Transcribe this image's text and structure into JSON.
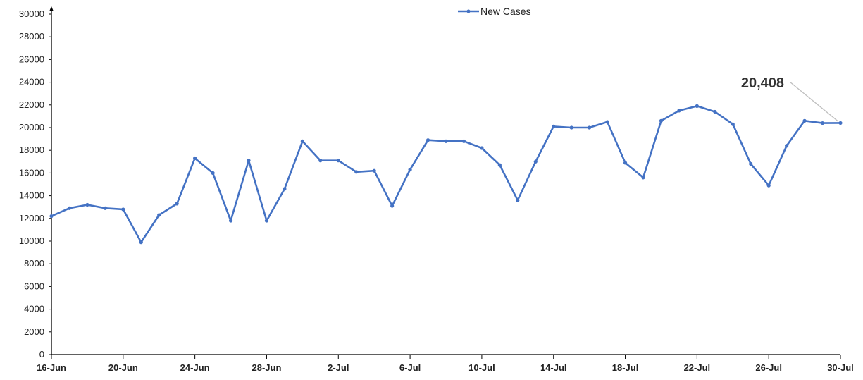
{
  "chart_data": {
    "type": "line",
    "legend": {
      "label": "New Cases",
      "position": "top-center"
    },
    "colors": {
      "series": "#4472C4",
      "axis": "#000000",
      "callout_line": "#bfbfbf"
    },
    "ylim": [
      0,
      30000
    ],
    "yticks": [
      0,
      2000,
      4000,
      6000,
      8000,
      10000,
      12000,
      14000,
      16000,
      18000,
      20000,
      22000,
      24000,
      26000,
      28000,
      30000
    ],
    "xtick_labels": [
      "16-Jun",
      "20-Jun",
      "24-Jun",
      "28-Jun",
      "2-Jul",
      "6-Jul",
      "10-Jul",
      "14-Jul",
      "18-Jul",
      "22-Jul",
      "26-Jul",
      "30-Jul"
    ],
    "grid": false,
    "x": [
      "16-Jun",
      "17-Jun",
      "18-Jun",
      "19-Jun",
      "20-Jun",
      "21-Jun",
      "22-Jun",
      "23-Jun",
      "24-Jun",
      "25-Jun",
      "26-Jun",
      "27-Jun",
      "28-Jun",
      "29-Jun",
      "30-Jun",
      "1-Jul",
      "2-Jul",
      "3-Jul",
      "4-Jul",
      "5-Jul",
      "6-Jul",
      "7-Jul",
      "8-Jul",
      "9-Jul",
      "10-Jul",
      "11-Jul",
      "12-Jul",
      "13-Jul",
      "14-Jul",
      "15-Jul",
      "16-Jul",
      "17-Jul",
      "18-Jul",
      "19-Jul",
      "20-Jul",
      "21-Jul",
      "22-Jul",
      "23-Jul",
      "24-Jul",
      "25-Jul",
      "26-Jul",
      "27-Jul",
      "28-Jul",
      "29-Jul",
      "30-Jul"
    ],
    "series": [
      {
        "name": "New Cases",
        "values": [
          12200,
          12900,
          13200,
          12900,
          12800,
          9900,
          12300,
          13300,
          17300,
          16000,
          11800,
          17100,
          11800,
          14600,
          18800,
          17100,
          17100,
          16100,
          16200,
          13100,
          16300,
          18900,
          18800,
          18800,
          18200,
          16700,
          13600,
          17000,
          20100,
          20000,
          20000,
          20500,
          16900,
          15600,
          20600,
          21500,
          21900,
          21400,
          20300,
          16800,
          14900,
          18400,
          20600,
          20400,
          20408
        ]
      }
    ],
    "annotation": {
      "label": "20,408",
      "target": "30-Jul"
    }
  }
}
